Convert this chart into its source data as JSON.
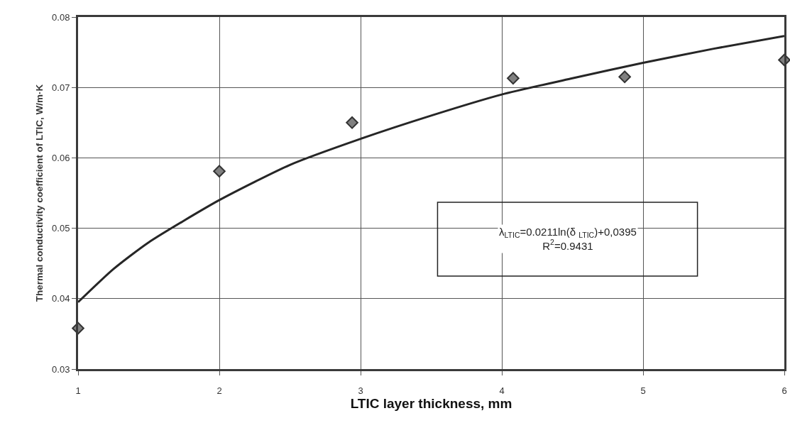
{
  "chart_data": {
    "type": "scatter",
    "xlabel": "LTIC layer thickness, mm",
    "ylabel": "Thermal conductivity coefficient of LTIC, W/m·K",
    "series": [
      {
        "color": "#808080",
        "marker": "diamond",
        "x": [
          1,
          2,
          2.94,
          4.08,
          4.87,
          6
        ],
        "values": [
          0.0358,
          0.0581,
          0.065,
          0.0713,
          0.0715,
          0.0739
        ]
      },
      {
        "type": "line",
        "color": "#262626",
        "marker": "none",
        "line_style": "solid",
        "x": [
          1,
          1.25,
          1.5,
          2,
          2.5,
          3,
          3.5,
          4,
          4.5,
          5,
          5.5,
          6
        ],
        "values": [
          0.0395,
          0.0442,
          0.048,
          0.054,
          0.059,
          0.0627,
          0.066,
          0.069,
          0.0713,
          0.0735,
          0.0755,
          0.0773
        ]
      }
    ],
    "xlim": [
      1,
      6
    ],
    "xticks": [
      1,
      2,
      3,
      4,
      5,
      6
    ],
    "ylim": [
      0.03,
      0.08
    ],
    "yticks": [
      0.03,
      0.04,
      0.05,
      0.06,
      0.07,
      0.08
    ],
    "grid": true,
    "annotations": [
      "λ$_{LTIC}$=0.0211ln(δ $_{LTIC}$)+0,0395\nR$^{2}$=0.9431"
    ]
  }
}
